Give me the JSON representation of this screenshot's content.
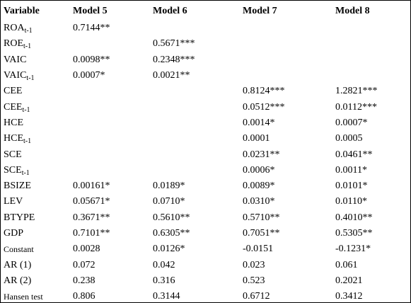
{
  "table": {
    "header": [
      "Variable",
      "Model 5",
      "Model 6",
      "Model 7",
      "Model 8"
    ],
    "rows": [
      {
        "label": "ROA",
        "sub": "t-1",
        "cells": [
          "0.7144**",
          null,
          null,
          null
        ]
      },
      {
        "label": "ROE",
        "sub": "t-1",
        "cells": [
          null,
          "0.5671***",
          null,
          null
        ]
      },
      {
        "label": "VAIC",
        "cells": [
          "0.0098**",
          "0.2348***",
          null,
          null
        ]
      },
      {
        "label": "VAIC",
        "sub": "t-1",
        "cells": [
          "0.0007*",
          "0.0021**",
          null,
          null
        ]
      },
      {
        "label": "CEE",
        "cells": [
          null,
          null,
          "0.8124***",
          "1.2821***"
        ]
      },
      {
        "label": "CEE",
        "sub": "t-1",
        "cells": [
          null,
          null,
          "0.0512***",
          "0.0112***"
        ]
      },
      {
        "label": "HCE",
        "cells": [
          null,
          null,
          "0.0014*",
          "0.0007*"
        ]
      },
      {
        "label": "HCE",
        "sub": "t-1",
        "cells": [
          null,
          null,
          "0.0001",
          "0.0005"
        ]
      },
      {
        "label": "SCE",
        "cells": [
          null,
          null,
          "0.0231**",
          "0.0461**"
        ]
      },
      {
        "label": "SCE",
        "sub": "t-1",
        "cells": [
          null,
          null,
          "0.0006*",
          "0.0011*"
        ]
      },
      {
        "label": "BSIZE",
        "cells": [
          "0.00161*",
          "0.0189*",
          "0.0089*",
          "0.0101*"
        ]
      },
      {
        "label": "LEV",
        "cells": [
          "0.05671*",
          "0.0710*",
          "0.0310*",
          "0.0110*"
        ]
      },
      {
        "label": "BTYPE",
        "cells": [
          "0.3671**",
          "0.5610**",
          "0.5710**",
          "0.4010**"
        ]
      },
      {
        "label": "GDP",
        "cells": [
          "0.7101**",
          "0.6305**",
          "0.7051**",
          "0.5305**"
        ]
      },
      {
        "label": "Constant",
        "cells": [
          "0.0028",
          "0.0126*",
          "-0.0151",
          "-0.1231*"
        ]
      },
      {
        "label": "AR (1)",
        "cells": [
          "0.072",
          "0.042",
          "0.023",
          "0.061"
        ]
      },
      {
        "label": "AR (2)",
        "cells": [
          "0.238",
          "0.316",
          "0.523",
          "0.2021"
        ]
      },
      {
        "label": "Hansen test",
        "cells": [
          "0.806",
          "0.3144",
          "0.6712",
          "0.3412"
        ]
      }
    ]
  }
}
